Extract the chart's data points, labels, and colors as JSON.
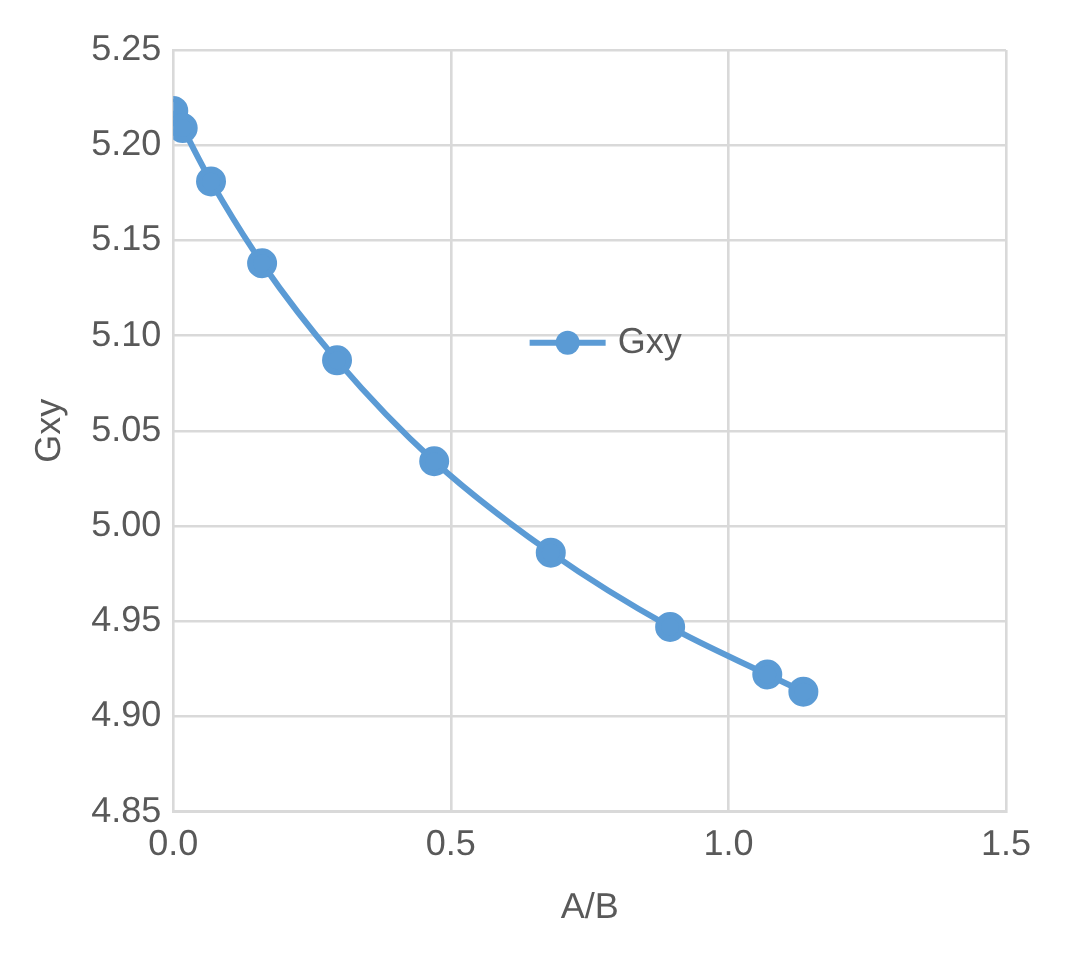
{
  "chart_data": {
    "type": "line",
    "xlabel": "A/B",
    "ylabel": "Gxy",
    "x": [
      0.0,
      0.017,
      0.068,
      0.16,
      0.295,
      0.47,
      0.68,
      0.895,
      1.07,
      1.135
    ],
    "series": [
      {
        "name": "Gxy",
        "color": "#5b9bd5",
        "values": [
          5.218,
          5.209,
          5.181,
          5.138,
          5.087,
          5.034,
          4.986,
          4.947,
          4.922,
          4.913
        ]
      }
    ],
    "xlim": [
      0,
      1.5
    ],
    "xticks": [
      {
        "value": 0,
        "label": "0.0"
      },
      {
        "value": 0.5,
        "label": "0.5"
      },
      {
        "value": 1,
        "label": "1.0"
      },
      {
        "value": 1.5,
        "label": "1.5"
      }
    ],
    "ylim": [
      4.85,
      5.25
    ],
    "yticks": [
      {
        "value": 4.85,
        "label": "4.85"
      },
      {
        "value": 4.9,
        "label": "4.90"
      },
      {
        "value": 4.95,
        "label": "4.95"
      },
      {
        "value": 5,
        "label": "5.00"
      },
      {
        "value": 5.05,
        "label": "5.05"
      },
      {
        "value": 5.1,
        "label": "5.10"
      },
      {
        "value": 5.15,
        "label": "5.15"
      },
      {
        "value": 5.2,
        "label": "5.20"
      },
      {
        "value": 5.25,
        "label": "5.25"
      }
    ],
    "grid": true,
    "legend": "center",
    "marker": "circle",
    "line_style": "solid"
  }
}
